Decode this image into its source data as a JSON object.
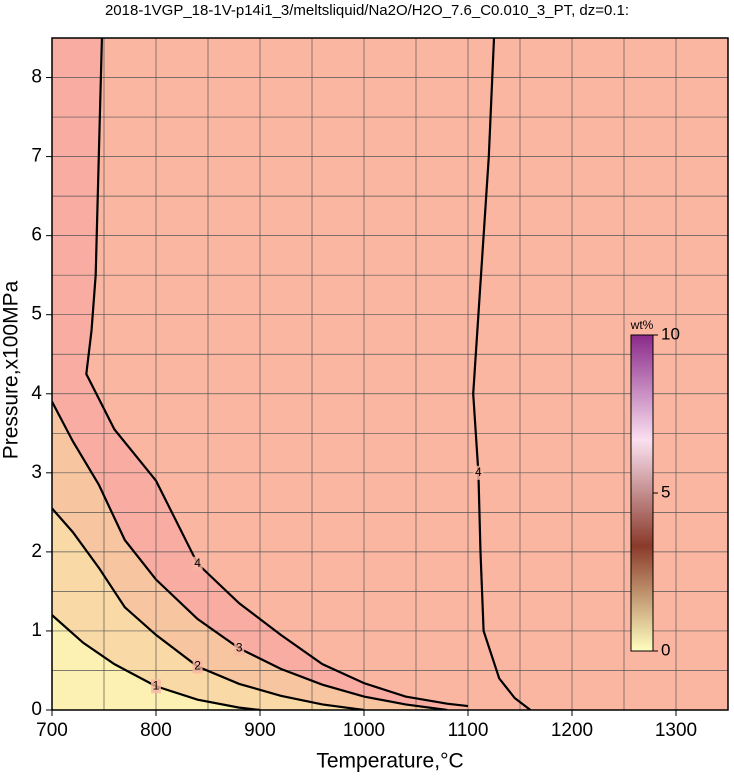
{
  "chart_data": {
    "type": "contour",
    "title": "2018-1VGP_18-1V-p14i1_3/meltsliquid/Na2O/H2O_7.6_C0.010_3_PT, dz=0.1:",
    "xlabel": "Temperature,°C",
    "ylabel": "Pressure,x100MPa",
    "xlim": [
      700,
      1350
    ],
    "ylim": [
      0,
      8.5
    ],
    "xticks": [
      700,
      800,
      900,
      1000,
      1100,
      1200,
      1300
    ],
    "yticks": [
      0,
      1,
      2,
      3,
      4,
      5,
      6,
      7,
      8
    ],
    "grid": true,
    "xgrid_step": 50,
    "ygrid_step": 0.5,
    "background": "#fbb6a2",
    "contours": [
      {
        "level": 4,
        "fill": "#f9aca2",
        "x": [
          748,
          745,
          742,
          738,
          733,
          760,
          800,
          840,
          880,
          920,
          960,
          1000,
          1040,
          1080,
          1100
        ],
        "y": [
          8.5,
          7,
          5.5,
          4.8,
          4.25,
          3.55,
          2.9,
          1.85,
          1.35,
          0.95,
          0.58,
          0.34,
          0.17,
          0.08,
          0.05
        ]
      },
      {
        "level": 4,
        "x": [
          1125,
          1120,
          1115,
          1110,
          1105,
          1110,
          1112,
          1115,
          1130,
          1145,
          1160
        ],
        "y": [
          8.5,
          7,
          6,
          5,
          4,
          3,
          2,
          1,
          0.4,
          0.15,
          0
        ]
      },
      {
        "level": 3,
        "fill": "#f7c6a0",
        "x": [
          700,
          720,
          745,
          770,
          800,
          840,
          880,
          920,
          960,
          1000,
          1040,
          1080
        ],
        "y": [
          3.9,
          3.4,
          2.85,
          2.15,
          1.65,
          1.15,
          0.78,
          0.52,
          0.32,
          0.17,
          0.07,
          0
        ]
      },
      {
        "level": 2,
        "fill": "#f9daa6",
        "x": [
          700,
          720,
          745,
          770,
          800,
          840,
          880,
          920,
          960,
          1000
        ],
        "y": [
          2.55,
          2.25,
          1.8,
          1.3,
          0.95,
          0.55,
          0.33,
          0.18,
          0.07,
          0
        ]
      },
      {
        "level": 1,
        "fill": "#fcf0b2",
        "x": [
          700,
          730,
          760,
          800,
          840,
          880,
          900
        ],
        "y": [
          1.2,
          0.85,
          0.58,
          0.3,
          0.13,
          0.03,
          0
        ]
      }
    ],
    "colorbar": {
      "label": "wt%",
      "lim": [
        0,
        10
      ],
      "ticks": [
        0,
        5,
        10
      ],
      "colors": [
        "#ffffc0",
        "#8a3a2a",
        "#fbe0f0",
        "#8a2a8a"
      ]
    }
  }
}
